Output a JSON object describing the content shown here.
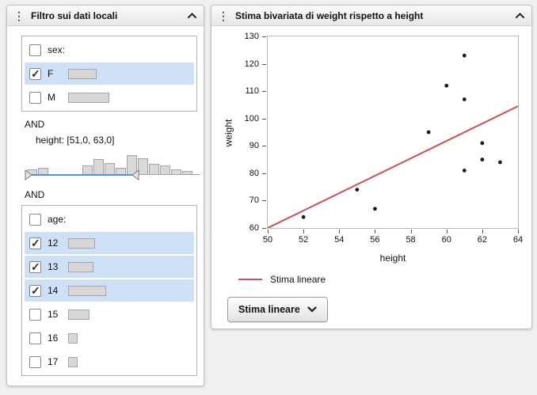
{
  "icons": {
    "menu_dots": "⋮"
  },
  "filter_panel": {
    "title": "Filtro sui dati locali",
    "and_label_1": "AND",
    "and_label_2": "AND",
    "sex": {
      "label": "sex:",
      "checked": false,
      "options": [
        {
          "label": "F",
          "checked": true,
          "selected": true,
          "bar": 36
        },
        {
          "label": "M",
          "checked": false,
          "selected": false,
          "bar": 52
        }
      ]
    },
    "height_filter": {
      "label": "height: [51,0, 63,0]",
      "bars": [
        7,
        9,
        0,
        0,
        0,
        12,
        20,
        15,
        9,
        25,
        21,
        14,
        12,
        7,
        5
      ],
      "handle_left_pct": 0,
      "handle_right_pct": 62
    },
    "age": {
      "label": "age:",
      "checked": false,
      "options": [
        {
          "label": "12",
          "checked": true,
          "selected": true,
          "bar": 34
        },
        {
          "label": "13",
          "checked": true,
          "selected": true,
          "bar": 32
        },
        {
          "label": "14",
          "checked": true,
          "selected": true,
          "bar": 48
        },
        {
          "label": "15",
          "checked": false,
          "selected": false,
          "bar": 27
        },
        {
          "label": "16",
          "checked": false,
          "selected": false,
          "bar": 12
        },
        {
          "label": "17",
          "checked": false,
          "selected": false,
          "bar": 12
        }
      ]
    }
  },
  "bivariate_panel": {
    "title": "Stima bivariata di weight rispetto a height",
    "legend_label": "Stima lineare",
    "dropdown_label": "Stima lineare"
  },
  "chart_data": {
    "type": "scatter",
    "title": "Stima bivariata di weight rispetto a height",
    "xlabel": "height",
    "ylabel": "weight",
    "xlim": [
      50,
      64
    ],
    "ylim": [
      60,
      130
    ],
    "xticks": [
      50,
      52,
      54,
      56,
      58,
      60,
      62,
      64
    ],
    "yticks": [
      60,
      70,
      80,
      90,
      100,
      110,
      120,
      130
    ],
    "grid": false,
    "points": [
      [
        52,
        64
      ],
      [
        55,
        74
      ],
      [
        56,
        67
      ],
      [
        59,
        95
      ],
      [
        60,
        112
      ],
      [
        61,
        123
      ],
      [
        61,
        107
      ],
      [
        61,
        81
      ],
      [
        62,
        91
      ],
      [
        62,
        85
      ],
      [
        63,
        84
      ]
    ],
    "point_color": "#1a1a1a",
    "fit_line": {
      "name": "Stima lineare",
      "x1": 50,
      "y1": 60,
      "x2": 64,
      "y2": 104.5,
      "color": "#cc4f58"
    },
    "legend": [
      "Stima lineare"
    ],
    "legend_position": "bottom-left"
  }
}
